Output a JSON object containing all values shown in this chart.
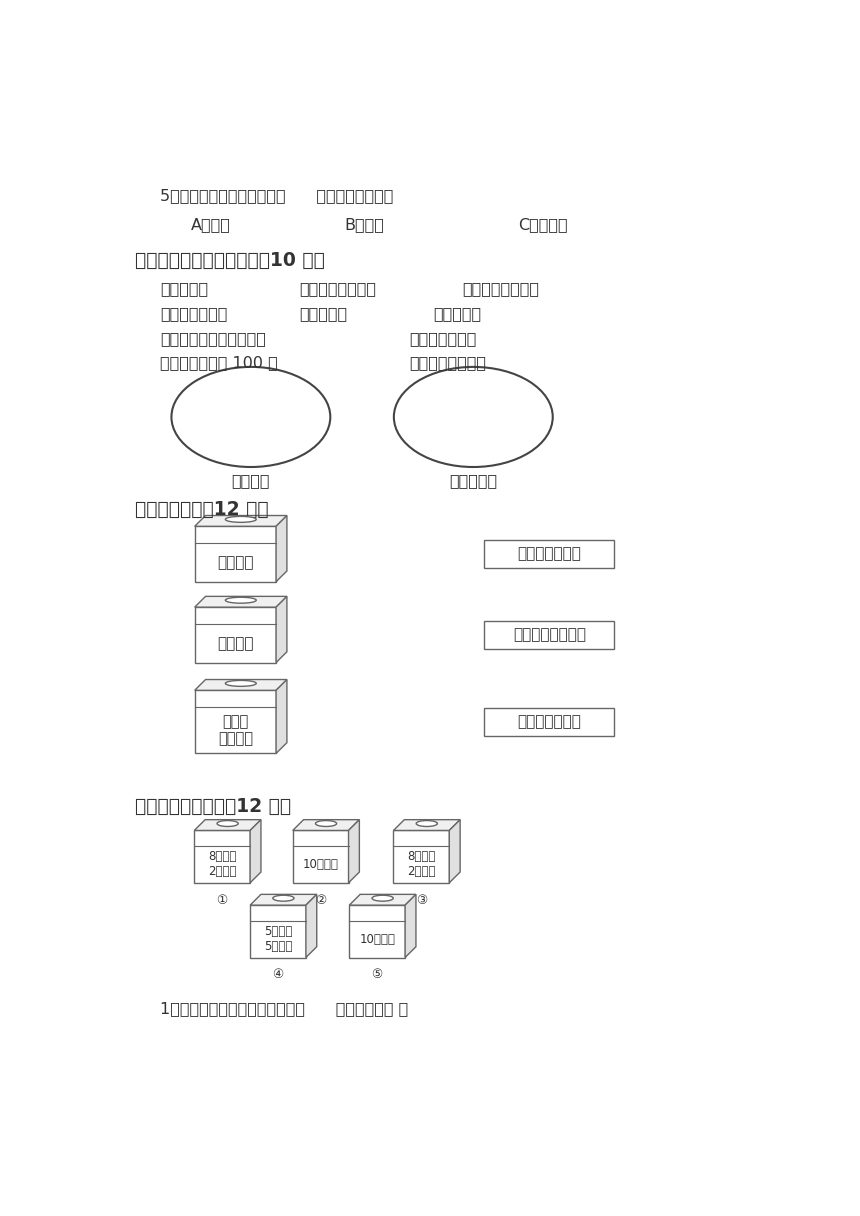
{
  "bg_color": "#ffffff",
  "text_color": "#333333",
  "line_color": "#666666",
  "q5_text": "5、如图，转动转盘，指针（      ）停在白色区域。",
  "q5_options": [
    "A、可能",
    "B、一定",
    "C、不可能"
  ],
  "q4_title": "四、分一分。（填序号）（10 分）",
  "q4_row1": [
    "蝶蝶天上飞",
    "女同学比男同学矮",
    "大鲨鱼在海里生活"
  ],
  "q4_row2": [
    "小明比他哥哥小",
    "后天会下雨",
    "买彩票中将"
  ],
  "q4_row3": [
    "今天星期四，明天星期五",
    "抛硬币正面朝上"
  ],
  "q4_row4": [
    "小明数学考试得 100 分",
    "月亮围绕地球转动"
  ],
  "q4_labels": [
    "确定现象",
    "不确定现象"
  ],
  "q5_title": "五、连一连。（12 分）",
  "boxes_left": [
    "加法卡片",
    "减法卡片",
    "加法和\n减法卡片"
  ],
  "boxes_right": [
    "可能是加法卡片",
    "不可能是加法卡片",
    "一定是加法卡片"
  ],
  "q6_title": "六、看图填一填。（12 分）",
  "box_labels": [
    "8个红球\n2个白球",
    "10个红球",
    "8个白球\n2个红球",
    "5个红球\n5个白球",
    "10个白球"
  ],
  "box_nums": [
    "①",
    "②",
    "③",
    "④",
    "⑤"
  ],
  "q6_q1": "1、摸到的球一定是红球，应到（      ）号盒子去摸 。"
}
